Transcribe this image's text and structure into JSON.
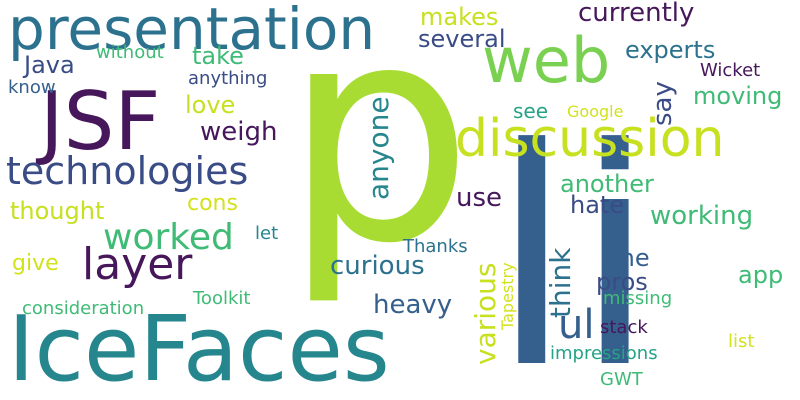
{
  "palette": {
    "dark_purple": "#46175a",
    "navy": "#3a4c86",
    "blue": "#355f8d",
    "teal_blue": "#2c728e",
    "teal": "#26868d",
    "green_teal": "#25a386",
    "green": "#3fbb76",
    "light_green": "#7ad151",
    "lime": "#a9dc33",
    "yellow_green": "#c7e020",
    "yellow": "#d2e21b"
  },
  "words": [
    {
      "text": "p",
      "color": "#a9dc33",
      "orientation": "horizontal"
    },
    {
      "text": "li",
      "color": "#355f8d",
      "orientation": "horizontal"
    },
    {
      "text": "IceFaces",
      "color": "#26868d",
      "orientation": "horizontal"
    },
    {
      "text": "JSF",
      "color": "#46175a",
      "orientation": "horizontal"
    },
    {
      "text": "web",
      "color": "#7ad151",
      "orientation": "horizontal"
    },
    {
      "text": "presentation",
      "color": "#2c728e",
      "orientation": "horizontal"
    },
    {
      "text": "discussion",
      "color": "#c7e020",
      "orientation": "horizontal"
    },
    {
      "text": "technologies",
      "color": "#3a4c86",
      "orientation": "horizontal"
    },
    {
      "text": "layer",
      "color": "#46175a",
      "orientation": "horizontal"
    },
    {
      "text": "worked",
      "color": "#3fbb76",
      "orientation": "horizontal"
    },
    {
      "text": "anyone",
      "color": "#26868d",
      "orientation": "vertical"
    },
    {
      "text": "curious",
      "color": "#2c728e",
      "orientation": "horizontal"
    },
    {
      "text": "various",
      "color": "#c7e020",
      "orientation": "vertical"
    },
    {
      "text": "ul",
      "color": "#355f8d",
      "orientation": "horizontal"
    },
    {
      "text": "think",
      "color": "#2c728e",
      "orientation": "vertical"
    },
    {
      "text": "heavy",
      "color": "#355f8d",
      "orientation": "horizontal"
    },
    {
      "text": "makes",
      "color": "#c7e020",
      "orientation": "horizontal"
    },
    {
      "text": "currently",
      "color": "#46175a",
      "orientation": "horizontal"
    },
    {
      "text": "several",
      "color": "#3a4c86",
      "orientation": "horizontal"
    },
    {
      "text": "Java",
      "color": "#3a4c86",
      "orientation": "horizontal"
    },
    {
      "text": "take",
      "color": "#3fbb76",
      "orientation": "horizontal"
    },
    {
      "text": "without",
      "color": "#3fbb76",
      "orientation": "horizontal"
    },
    {
      "text": "anything",
      "color": "#3a4c86",
      "orientation": "horizontal"
    },
    {
      "text": "know",
      "color": "#355f8d",
      "orientation": "horizontal"
    },
    {
      "text": "love",
      "color": "#c7e020",
      "orientation": "horizontal"
    },
    {
      "text": "weigh",
      "color": "#46175a",
      "orientation": "horizontal"
    },
    {
      "text": "cons",
      "color": "#d2e21b",
      "orientation": "horizontal"
    },
    {
      "text": "thought",
      "color": "#c7e020",
      "orientation": "horizontal"
    },
    {
      "text": "give",
      "color": "#d2e21b",
      "orientation": "horizontal"
    },
    {
      "text": "let",
      "color": "#26868d",
      "orientation": "horizontal"
    },
    {
      "text": "consideration",
      "color": "#3fbb76",
      "orientation": "horizontal"
    },
    {
      "text": "Toolkit",
      "color": "#3fbb76",
      "orientation": "horizontal"
    },
    {
      "text": "experts",
      "color": "#2c728e",
      "orientation": "horizontal"
    },
    {
      "text": "Wicket",
      "color": "#46175a",
      "orientation": "horizontal"
    },
    {
      "text": "say",
      "color": "#3a4c86",
      "orientation": "vertical"
    },
    {
      "text": "moving",
      "color": "#3fbb76",
      "orientation": "horizontal"
    },
    {
      "text": "see",
      "color": "#25a386",
      "orientation": "horizontal"
    },
    {
      "text": "Google",
      "color": "#d2e21b",
      "orientation": "horizontal"
    },
    {
      "text": "another",
      "color": "#3fbb76",
      "orientation": "horizontal"
    },
    {
      "text": "use",
      "color": "#46175a",
      "orientation": "horizontal"
    },
    {
      "text": "hate",
      "color": "#3a4c86",
      "orientation": "horizontal"
    },
    {
      "text": "working",
      "color": "#3fbb76",
      "orientation": "horizontal"
    },
    {
      "text": "one",
      "color": "#355f8d",
      "orientation": "horizontal"
    },
    {
      "text": "pros",
      "color": "#3a4c86",
      "orientation": "horizontal"
    },
    {
      "text": "app",
      "color": "#3fbb76",
      "orientation": "horizontal"
    },
    {
      "text": "Thanks",
      "color": "#2c728e",
      "orientation": "horizontal"
    },
    {
      "text": "Tapestry",
      "color": "#d2e21b",
      "orientation": "vertical"
    },
    {
      "text": "missing",
      "color": "#3fbb76",
      "orientation": "horizontal"
    },
    {
      "text": "stack",
      "color": "#46175a",
      "orientation": "horizontal"
    },
    {
      "text": "impressions",
      "color": "#25a386",
      "orientation": "horizontal"
    },
    {
      "text": "list",
      "color": "#d2e21b",
      "orientation": "horizontal"
    },
    {
      "text": "GWT",
      "color": "#3fbb76",
      "orientation": "horizontal"
    }
  ]
}
